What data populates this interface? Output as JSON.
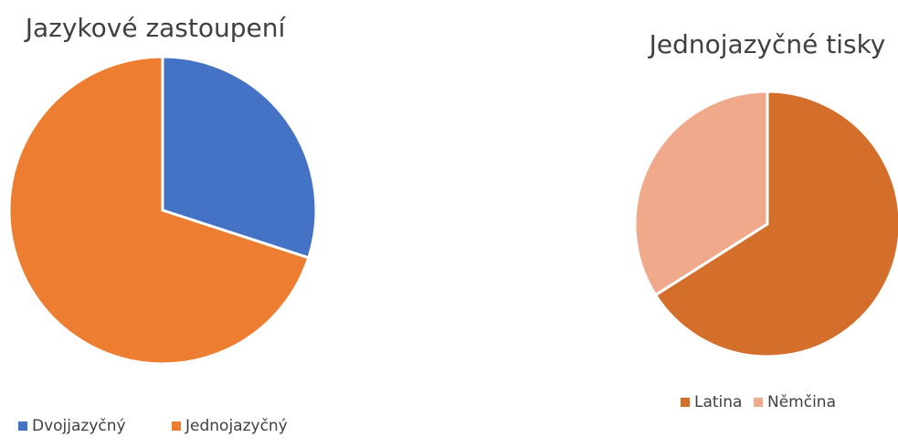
{
  "chart_data": [
    {
      "type": "pie",
      "title": "Jazykové zastoupení",
      "categories": [
        "Dvojjazyčný",
        "Jednojazyčný"
      ],
      "values": [
        30,
        70
      ],
      "colors": [
        "#4472c4",
        "#ed7d31"
      ],
      "legend": "bottom"
    },
    {
      "type": "pie",
      "title": "Jednojazyčné tisky",
      "categories": [
        "Latina",
        "Němčina"
      ],
      "values": [
        66,
        34
      ],
      "colors": [
        "#d36f2b",
        "#f0a98b"
      ],
      "legend": "bottom"
    }
  ]
}
